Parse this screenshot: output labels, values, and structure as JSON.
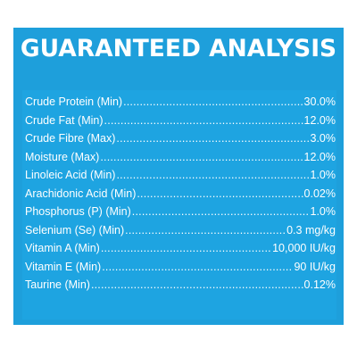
{
  "title": "GUARANTEED ANALYSIS",
  "colors": {
    "panel": "#1e9fdb",
    "text": "#ffffff"
  },
  "rows": [
    {
      "label": "Crude Protein (Min)",
      "value": "30.0%"
    },
    {
      "label": "Crude Fat (Min)",
      "value": "12.0%"
    },
    {
      "label": "Crude Fibre (Max)",
      "value": "3.0%"
    },
    {
      "label": "Moisture (Max)",
      "value": "12.0%"
    },
    {
      "label": "Linoleic Acid (Min)",
      "value": "1.0%"
    },
    {
      "label": "Arachidonic Acid (Min)",
      "value": "0.02%"
    },
    {
      "label": "Phosphorus (P) (Min)",
      "value": "1.0%"
    },
    {
      "label": "Selenium (Se) (Min)",
      "value": "0.3 mg/kg"
    },
    {
      "label": "Vitamin A (Min)",
      "value": "10,000 IU/kg"
    },
    {
      "label": "Vitamin E (Min)",
      "value": "90 IU/kg"
    },
    {
      "label": "Taurine (Min)",
      "value": "0.12%"
    }
  ]
}
